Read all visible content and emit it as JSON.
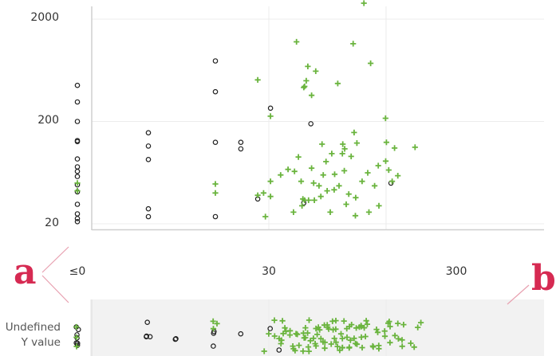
{
  "chart_data": {
    "type": "scatter",
    "x_scale": "log",
    "y_scale": "log",
    "x_ticks": [
      "≤0",
      "30",
      "300"
    ],
    "y_ticks": [
      "2000",
      "200",
      "20"
    ],
    "annotations": [
      "a",
      "b"
    ],
    "null_row_label": [
      "Undefined",
      "Y value"
    ],
    "colors": {
      "circle": "#222222",
      "plus": "#6ab43e",
      "null_band_bg": "#f2f2f2"
    },
    "series": [
      {
        "marker": "circle",
        "points": [
          {
            "x": 0,
            "y": 450
          },
          {
            "x": 0,
            "y": 310
          },
          {
            "x": 0,
            "y": 200
          },
          {
            "x": 0,
            "y": 130
          },
          {
            "x": 0,
            "y": 127
          },
          {
            "x": 0,
            "y": 86
          },
          {
            "x": 0,
            "y": 72
          },
          {
            "x": 0,
            "y": 65
          },
          {
            "x": 0,
            "y": 58
          },
          {
            "x": 0,
            "y": 48
          },
          {
            "x": 0,
            "y": 41
          },
          {
            "x": 0,
            "y": 31
          },
          {
            "x": 0,
            "y": 25
          },
          {
            "x": 0,
            "y": 22.5
          },
          {
            "x": 0,
            "y": 21
          },
          {
            "x": 2,
            "y": 155
          },
          {
            "x": 2,
            "y": 115
          },
          {
            "x": 2,
            "y": 85
          },
          {
            "x": 2,
            "y": 28
          },
          {
            "x": 2,
            "y": 23.5
          },
          {
            "x": 10,
            "y": 780
          },
          {
            "x": 10,
            "y": 390
          },
          {
            "x": 10,
            "y": 125
          },
          {
            "x": 10,
            "y": 23.5
          },
          {
            "x": 17,
            "y": 125
          },
          {
            "x": 17,
            "y": 108
          },
          {
            "x": 24,
            "y": 35
          },
          {
            "x": 31,
            "y": 270
          },
          {
            "x": 69,
            "y": 190
          },
          {
            "x": 60,
            "y": 32
          },
          {
            "x": 330,
            "y": 50
          }
        ]
      },
      {
        "marker": "plus",
        "points": [
          {
            "x": 0,
            "y": 50
          },
          {
            "x": 0,
            "y": 42
          },
          {
            "x": 10,
            "y": 49
          },
          {
            "x": 10,
            "y": 40
          },
          {
            "x": 24,
            "y": 510
          },
          {
            "x": 24,
            "y": 38
          },
          {
            "x": 27,
            "y": 40
          },
          {
            "x": 28,
            "y": 23.5
          },
          {
            "x": 31,
            "y": 225
          },
          {
            "x": 31,
            "y": 52
          },
          {
            "x": 31,
            "y": 37
          },
          {
            "x": 38,
            "y": 60
          },
          {
            "x": 44,
            "y": 68
          },
          {
            "x": 49,
            "y": 26
          },
          {
            "x": 50,
            "y": 65
          },
          {
            "x": 52,
            "y": 1200
          },
          {
            "x": 54,
            "y": 90
          },
          {
            "x": 57,
            "y": 52
          },
          {
            "x": 58,
            "y": 30
          },
          {
            "x": 59,
            "y": 35
          },
          {
            "x": 60,
            "y": 430
          },
          {
            "x": 61,
            "y": 34
          },
          {
            "x": 61,
            "y": 440
          },
          {
            "x": 63,
            "y": 500
          },
          {
            "x": 65,
            "y": 690
          },
          {
            "x": 66,
            "y": 34
          },
          {
            "x": 70,
            "y": 70
          },
          {
            "x": 70,
            "y": 360
          },
          {
            "x": 73,
            "y": 50
          },
          {
            "x": 74,
            "y": 34
          },
          {
            "x": 76,
            "y": 620
          },
          {
            "x": 81,
            "y": 47
          },
          {
            "x": 84,
            "y": 37
          },
          {
            "x": 86,
            "y": 120
          },
          {
            "x": 88,
            "y": 60
          },
          {
            "x": 93,
            "y": 81
          },
          {
            "x": 95,
            "y": 42
          },
          {
            "x": 101,
            "y": 26
          },
          {
            "x": 104,
            "y": 97
          },
          {
            "x": 109,
            "y": 43
          },
          {
            "x": 110,
            "y": 61
          },
          {
            "x": 117,
            "y": 470
          },
          {
            "x": 120,
            "y": 47
          },
          {
            "x": 128,
            "y": 97
          },
          {
            "x": 129,
            "y": 120
          },
          {
            "x": 133,
            "y": 66
          },
          {
            "x": 134,
            "y": 108
          },
          {
            "x": 138,
            "y": 31
          },
          {
            "x": 145,
            "y": 39
          },
          {
            "x": 152,
            "y": 91
          },
          {
            "x": 158,
            "y": 1150
          },
          {
            "x": 161,
            "y": 156
          },
          {
            "x": 165,
            "y": 24
          },
          {
            "x": 166,
            "y": 36
          },
          {
            "x": 170,
            "y": 123
          },
          {
            "x": 188,
            "y": 52
          },
          {
            "x": 195,
            "y": 2860
          },
          {
            "x": 210,
            "y": 63
          },
          {
            "x": 215,
            "y": 26
          },
          {
            "x": 222,
            "y": 740
          },
          {
            "x": 240,
            "y": 47
          },
          {
            "x": 258,
            "y": 74
          },
          {
            "x": 261,
            "y": 30
          },
          {
            "x": 297,
            "y": 215
          },
          {
            "x": 298,
            "y": 82
          },
          {
            "x": 302,
            "y": 125
          },
          {
            "x": 316,
            "y": 67
          },
          {
            "x": 338,
            "y": 52
          },
          {
            "x": 354,
            "y": 110
          },
          {
            "x": 377,
            "y": 59
          },
          {
            "x": 527,
            "y": 112
          }
        ]
      }
    ],
    "null_row_points": {
      "circle": [
        0,
        0,
        0,
        0,
        0,
        0,
        0,
        2,
        2,
        2,
        2,
        4,
        4,
        10,
        10,
        10,
        17,
        31,
        38
      ],
      "plus": [
        0,
        0,
        0,
        10,
        10,
        10,
        28,
        31,
        33,
        34,
        36,
        37,
        38,
        38,
        40,
        41,
        42,
        44,
        45,
        47,
        48,
        50,
        52,
        53,
        54,
        55,
        57,
        58,
        60,
        62,
        63,
        64,
        66,
        67,
        68,
        70,
        72,
        73,
        75,
        77,
        78,
        80,
        82,
        84,
        86,
        88,
        90,
        92,
        94,
        96,
        98,
        100,
        103,
        106,
        108,
        110,
        113,
        116,
        118,
        120,
        123,
        126,
        128,
        130,
        133,
        136,
        140,
        143,
        146,
        150,
        153,
        156,
        160,
        164,
        168,
        172,
        176,
        180,
        186,
        190,
        196,
        200,
        205,
        210,
        216,
        224,
        232,
        240,
        250,
        260,
        270,
        280,
        290,
        300,
        312,
        324,
        336,
        350,
        365,
        380,
        400,
        420,
        440,
        470,
        500,
        540,
        580
      ]
    }
  }
}
